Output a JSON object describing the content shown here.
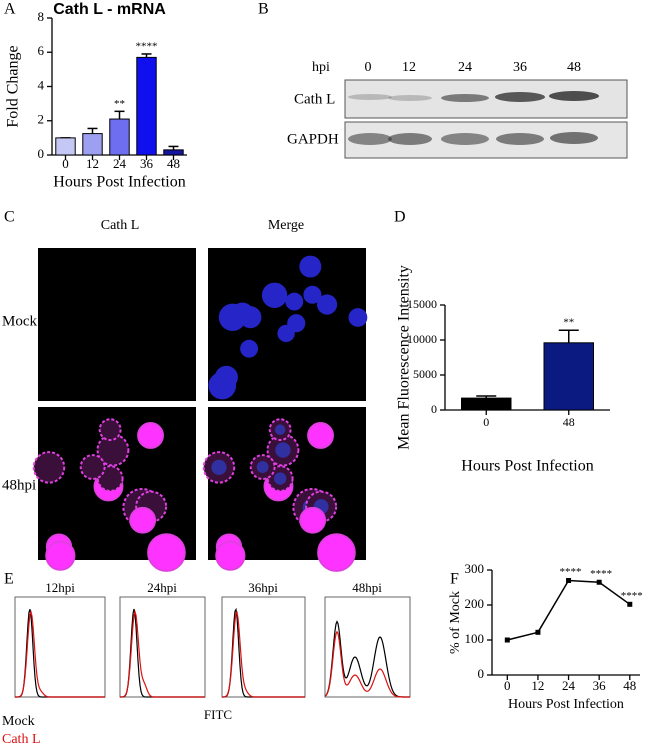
{
  "panel_labels": [
    "A",
    "B",
    "C",
    "D",
    "E",
    "F"
  ],
  "blot": {
    "hpi_label": "hpi",
    "lanes": [
      "0",
      "12",
      "24",
      "36",
      "48"
    ],
    "rows": [
      "Cath L",
      "GAPDH"
    ]
  },
  "images": {
    "columns": [
      "Cath L",
      "Merge"
    ],
    "rows": [
      "Mock",
      "48hpi"
    ]
  },
  "flow": {
    "titles": [
      "12hpi",
      "24hpi",
      "36hpi",
      "48hpi"
    ],
    "x_label": "FITC",
    "legend": [
      {
        "name": "Mock",
        "color": "#000000"
      },
      {
        "name": "Cath L",
        "color": "#dd1111"
      }
    ]
  },
  "chart_data": [
    {
      "type": "bar",
      "title": "Cath L - mRNA",
      "y_label": "Fold Change",
      "x_label": "Hours Post Infection",
      "categories": [
        "0",
        "12",
        "24",
        "36",
        "48"
      ],
      "values": [
        1,
        1.25,
        2.1,
        5.7,
        0.3
      ],
      "errors": [
        0,
        0.3,
        0.45,
        0.2,
        0.2
      ],
      "colors": [
        "#c5c8f5",
        "#9d9ff0",
        "#6d6ff0",
        "#1010ef",
        "#1515a0"
      ],
      "annotations": [
        null,
        null,
        "**",
        "****",
        null
      ],
      "ylim": [
        0,
        8
      ],
      "yticks": [
        0,
        2,
        4,
        6,
        8
      ]
    },
    {
      "type": "bar",
      "y_label": "Mean Fluorescence Intensity",
      "x_label": "Hours Post Infection",
      "categories": [
        "0",
        "48"
      ],
      "values": [
        1700,
        9600
      ],
      "errors": [
        300,
        1800
      ],
      "colors": [
        "#000000",
        "#0b1a80"
      ],
      "annotations": [
        null,
        "**"
      ],
      "ylim": [
        0,
        15000
      ],
      "yticks": [
        0,
        5000,
        10000,
        15000
      ]
    },
    {
      "type": "line",
      "y_label": "% of Mock",
      "x_label": "Hours Post Infection",
      "x": [
        0,
        12,
        24,
        36,
        48
      ],
      "values": [
        100,
        122,
        270,
        265,
        202
      ],
      "color": "#000000",
      "annotations": [
        null,
        null,
        "****",
        "****",
        "****"
      ],
      "xlim": [
        -6,
        52
      ],
      "xticks": [
        0,
        12,
        24,
        36,
        48
      ],
      "ylim": [
        0,
        300
      ],
      "yticks": [
        0,
        100,
        200,
        300
      ]
    }
  ]
}
